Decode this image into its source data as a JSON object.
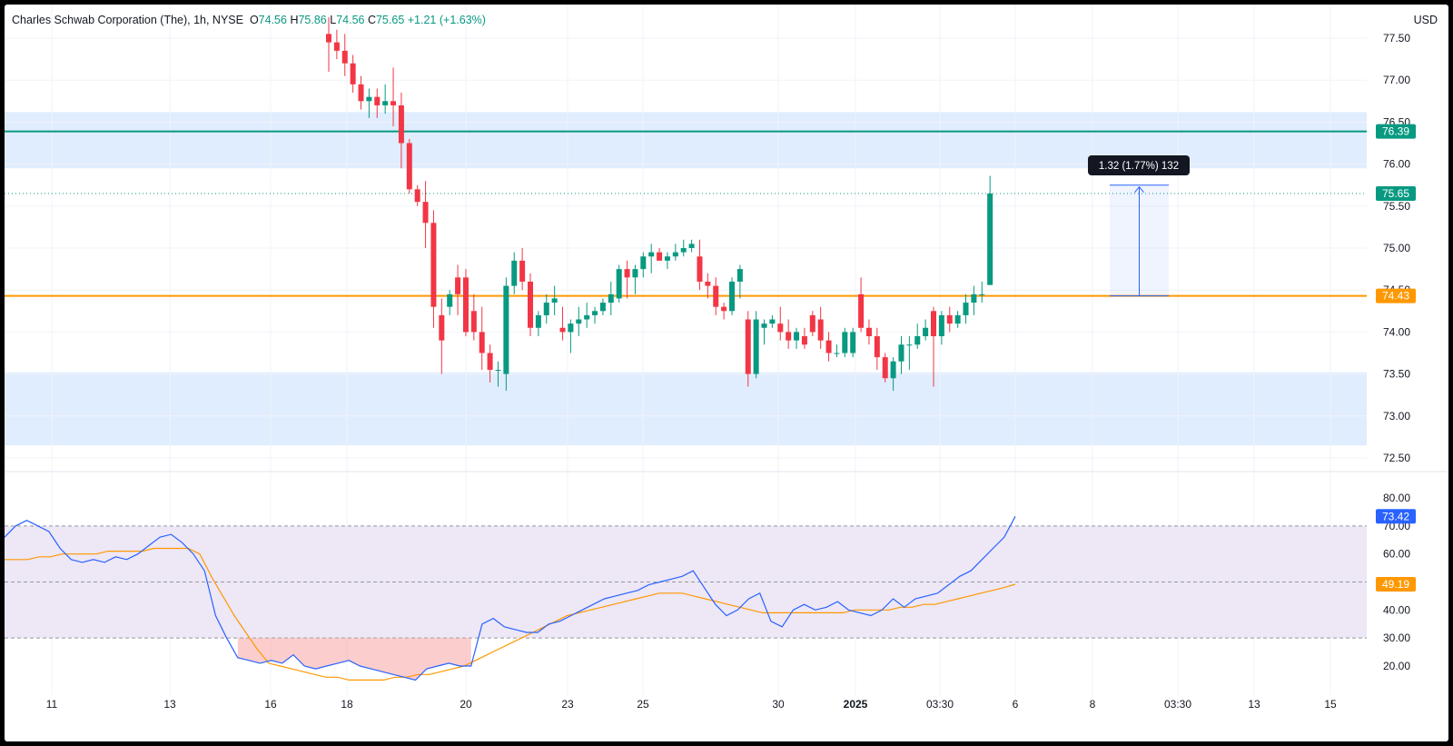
{
  "header": {
    "symbol": "Charles Schwab Corporation (The), 1h, NYSE",
    "o_label": "O",
    "o_value": "74.56",
    "h_label": "H",
    "h_value": "75.86",
    "l_label": "L",
    "l_value": "74.56",
    "c_label": "C",
    "c_value": "75.65",
    "change": "+1.21 (+1.63%)"
  },
  "currency": "USD",
  "colors": {
    "up": "#089981",
    "down": "#f23645",
    "rsi_line": "#2962ff",
    "rsi_ma": "#ff9800",
    "zone": "#dbeafe",
    "level_green": "#089981",
    "level_orange": "#ff9800",
    "rsi_band": "#ede7f6",
    "oversold_fill": "#f8a4a4"
  },
  "chart_data": [
    {
      "type": "candlestick",
      "title": "Charles Schwab Corporation (The), 1h, NYSE",
      "y_ticks": [
        "77.50",
        "77.00",
        "76.50",
        "76.00",
        "75.50",
        "75.00",
        "74.50",
        "74.00",
        "73.50",
        "73.00",
        "72.50"
      ],
      "ylim": [
        72.4,
        77.9
      ],
      "x_ticks": [
        "11",
        "13",
        "16",
        "18",
        "20",
        "23",
        "25",
        "30",
        "2025",
        "03:30",
        "6",
        "8",
        "03:30",
        "13",
        "15"
      ],
      "candles": [
        [
          77.55,
          77.75,
          77.1,
          77.45
        ],
        [
          77.45,
          77.6,
          77.25,
          77.35
        ],
        [
          77.35,
          77.55,
          77.05,
          77.2
        ],
        [
          77.2,
          77.3,
          76.85,
          76.95
        ],
        [
          76.95,
          77.05,
          76.65,
          76.75
        ],
        [
          76.75,
          76.9,
          76.55,
          76.8
        ],
        [
          76.8,
          76.9,
          76.55,
          76.7
        ],
        [
          76.7,
          76.95,
          76.6,
          76.75
        ],
        [
          76.75,
          77.15,
          76.45,
          76.7
        ],
        [
          76.7,
          76.85,
          75.95,
          76.25
        ],
        [
          76.25,
          76.3,
          75.65,
          75.7
        ],
        [
          75.7,
          75.75,
          75.5,
          75.55
        ],
        [
          75.55,
          75.8,
          75.0,
          75.3
        ],
        [
          75.3,
          75.45,
          74.05,
          74.3
        ],
        [
          74.2,
          74.4,
          73.5,
          73.9
        ],
        [
          74.3,
          74.5,
          74.2,
          74.45
        ],
        [
          74.65,
          74.8,
          74.2,
          74.45
        ],
        [
          74.65,
          74.75,
          73.95,
          74.0
        ],
        [
          74.25,
          74.45,
          73.9,
          74.0
        ],
        [
          74.0,
          74.3,
          73.55,
          73.75
        ],
        [
          73.75,
          73.85,
          73.4,
          73.55
        ],
        [
          73.55,
          73.65,
          73.35,
          73.55
        ],
        [
          73.5,
          74.65,
          73.3,
          74.55
        ],
        [
          74.55,
          74.95,
          74.45,
          74.85
        ],
        [
          74.85,
          75.0,
          74.5,
          74.6
        ],
        [
          74.6,
          74.7,
          73.95,
          74.05
        ],
        [
          74.05,
          74.25,
          73.95,
          74.2
        ],
        [
          74.2,
          74.45,
          74.1,
          74.35
        ],
        [
          74.35,
          74.55,
          74.2,
          74.4
        ],
        [
          74.05,
          74.3,
          73.9,
          74.0
        ],
        [
          74.0,
          74.15,
          73.75,
          74.1
        ],
        [
          74.1,
          74.3,
          73.95,
          74.15
        ],
        [
          74.15,
          74.35,
          74.05,
          74.2
        ],
        [
          74.2,
          74.3,
          74.1,
          74.25
        ],
        [
          74.25,
          74.4,
          74.2,
          74.35
        ],
        [
          74.35,
          74.6,
          74.2,
          74.45
        ],
        [
          74.4,
          74.8,
          74.35,
          74.75
        ],
        [
          74.75,
          74.85,
          74.4,
          74.65
        ],
        [
          74.65,
          74.8,
          74.45,
          74.75
        ],
        [
          74.75,
          74.95,
          74.65,
          74.9
        ],
        [
          74.9,
          75.05,
          74.7,
          74.95
        ],
        [
          74.95,
          75.0,
          74.85,
          74.85
        ],
        [
          74.85,
          74.95,
          74.75,
          74.9
        ],
        [
          74.9,
          75.05,
          74.85,
          74.95
        ],
        [
          74.95,
          75.1,
          74.9,
          75.0
        ],
        [
          75.0,
          75.1,
          74.95,
          75.05
        ],
        [
          74.9,
          75.1,
          74.5,
          74.6
        ],
        [
          74.6,
          74.7,
          74.4,
          74.55
        ],
        [
          74.55,
          74.65,
          74.2,
          74.3
        ],
        [
          74.3,
          74.35,
          74.15,
          74.25
        ],
        [
          74.25,
          74.65,
          74.2,
          74.6
        ],
        [
          74.6,
          74.8,
          74.4,
          74.75
        ],
        [
          74.15,
          74.25,
          73.35,
          73.5
        ],
        [
          73.5,
          74.25,
          73.45,
          74.15
        ],
        [
          74.05,
          74.15,
          73.85,
          74.1
        ],
        [
          74.1,
          74.2,
          74.05,
          74.15
        ],
        [
          74.1,
          74.3,
          73.9,
          74.0
        ],
        [
          74.0,
          74.15,
          73.8,
          73.9
        ],
        [
          73.9,
          74.05,
          73.8,
          74.0
        ],
        [
          73.95,
          74.05,
          73.8,
          73.85
        ],
        [
          74.2,
          74.25,
          73.95,
          74.0
        ],
        [
          74.15,
          74.3,
          73.8,
          73.9
        ],
        [
          73.9,
          74.0,
          73.65,
          73.75
        ],
        [
          73.75,
          73.85,
          73.7,
          73.75
        ],
        [
          73.75,
          74.05,
          73.7,
          74.0
        ],
        [
          73.75,
          74.05,
          73.7,
          74.0
        ],
        [
          74.45,
          74.65,
          74.0,
          74.05
        ],
        [
          74.05,
          74.15,
          73.85,
          73.95
        ],
        [
          73.95,
          74.05,
          73.55,
          73.7
        ],
        [
          73.7,
          73.75,
          73.4,
          73.45
        ],
        [
          73.45,
          73.7,
          73.3,
          73.65
        ],
        [
          73.65,
          73.95,
          73.5,
          73.85
        ],
        [
          73.85,
          73.95,
          73.55,
          73.85
        ],
        [
          73.85,
          74.1,
          73.8,
          73.95
        ],
        [
          73.95,
          74.15,
          73.9,
          74.05
        ],
        [
          74.25,
          74.3,
          73.35,
          73.95
        ],
        [
          73.95,
          74.25,
          73.85,
          74.2
        ],
        [
          74.2,
          74.3,
          74.0,
          74.1
        ],
        [
          74.1,
          74.25,
          74.05,
          74.2
        ],
        [
          74.2,
          74.45,
          74.1,
          74.35
        ],
        [
          74.35,
          74.55,
          74.2,
          74.45
        ],
        [
          74.45,
          74.6,
          74.35,
          74.45
        ],
        [
          74.56,
          75.86,
          74.56,
          75.65
        ]
      ],
      "levels": [
        {
          "price": 76.39,
          "label": "76.39",
          "color": "#089981"
        },
        {
          "price": 74.43,
          "label": "74.43",
          "color": "#ff9800"
        }
      ],
      "last_price": {
        "price": 75.65,
        "label": "75.65"
      },
      "zones": [
        [
          75.95,
          76.62
        ],
        [
          72.65,
          73.52
        ]
      ],
      "measure": {
        "label": "1.32 (1.77%) 132",
        "from_price": 74.43,
        "to_price": 75.75
      }
    },
    {
      "type": "line",
      "y_ticks": [
        "80.00",
        "70.00",
        "60.00",
        "40.00",
        "30.00",
        "20.00"
      ],
      "ylim": [
        10,
        85
      ],
      "bands": [
        30,
        50,
        70
      ],
      "series": [
        {
          "color": "#2962ff",
          "last_label": "73.42",
          "values": [
            66,
            70,
            72,
            70,
            68,
            62,
            58,
            57,
            58,
            57,
            59,
            58,
            60,
            63,
            66,
            67,
            64,
            60,
            54,
            38,
            30,
            23,
            22,
            21,
            22,
            21,
            24,
            20,
            19,
            20,
            21,
            22,
            20,
            19,
            18,
            17,
            16,
            15,
            19,
            20,
            21,
            20,
            20,
            35,
            37,
            34,
            33,
            32,
            32,
            35,
            36,
            38,
            40,
            42,
            44,
            45,
            46,
            47,
            49,
            50,
            51,
            52,
            54,
            48,
            42,
            38,
            40,
            44,
            46,
            36,
            34,
            40,
            42,
            40,
            41,
            43,
            40,
            39,
            38,
            40,
            44,
            41,
            44,
            45,
            46,
            49,
            52,
            54,
            58,
            62,
            66,
            73.42
          ]
        },
        {
          "color": "#ff9800",
          "last_label": "49.19",
          "values": [
            58,
            58,
            58,
            59,
            59,
            60,
            60,
            60,
            60,
            61,
            61,
            61,
            61,
            62,
            62,
            62,
            62,
            60,
            52,
            45,
            38,
            32,
            26,
            21,
            20,
            19,
            18,
            17,
            16,
            16,
            15,
            15,
            15,
            15,
            16,
            16,
            17,
            17,
            18,
            19,
            20,
            22,
            24,
            26,
            28,
            30,
            32,
            34,
            36,
            38,
            39,
            40,
            41,
            42,
            43,
            44,
            45,
            46,
            46,
            46,
            45,
            44,
            43,
            42,
            41,
            40,
            39,
            39,
            39,
            39,
            39,
            39,
            39,
            39,
            40,
            40,
            40,
            40,
            41,
            41,
            42,
            42,
            43,
            44,
            45,
            46,
            47,
            48,
            49.19
          ]
        }
      ]
    }
  ]
}
